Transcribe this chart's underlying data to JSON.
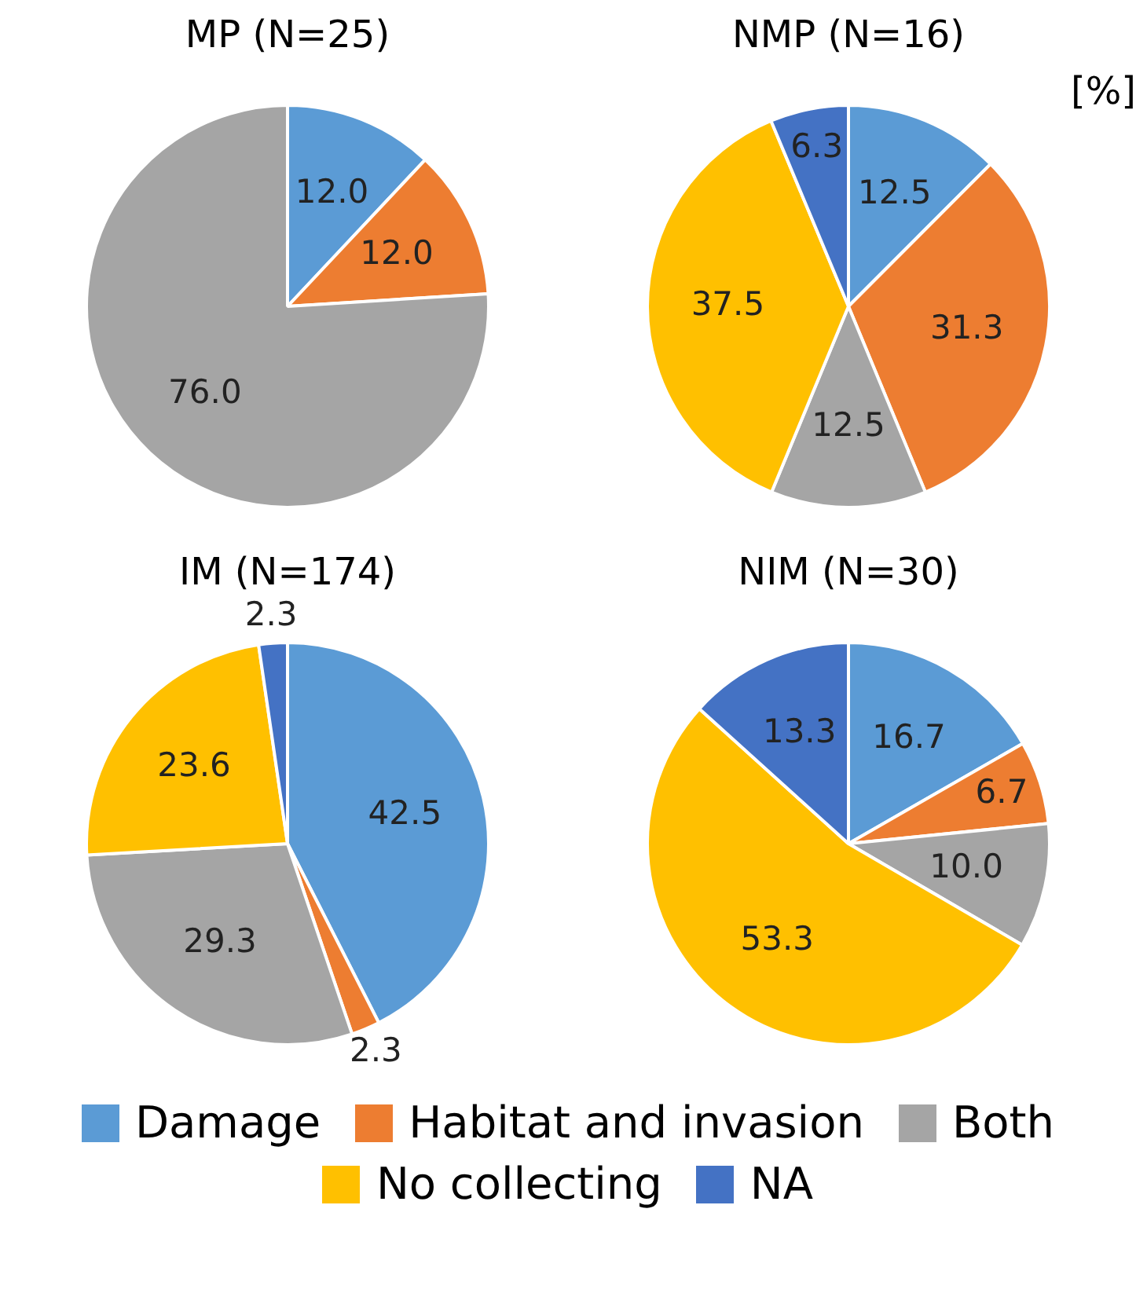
{
  "chart_data": [
    {
      "type": "pie",
      "title": "MP (N=25)",
      "categories": [
        null,
        null,
        null
      ],
      "values": [
        12.0,
        12.0,
        76.0
      ],
      "colors": [
        "#5b9bd5",
        "#ed7d31",
        "#a5a5a5"
      ],
      "value_labels": [
        "12.0",
        "12.0",
        "76.0"
      ]
    },
    {
      "type": "pie",
      "title": "NMP (N=16)",
      "categories": [
        null,
        null,
        null,
        null,
        null
      ],
      "values": [
        12.5,
        31.3,
        12.5,
        37.5,
        6.3
      ],
      "colors": [
        "#5b9bd5",
        "#ed7d31",
        "#a5a5a5",
        "#ffc000",
        "#4472c4"
      ],
      "value_labels": [
        "12.5",
        "31.3",
        "12.5",
        "37.5",
        "6.3"
      ],
      "annotations": [
        "[%]"
      ]
    },
    {
      "type": "pie",
      "title": "IM (N=174)",
      "categories": [
        null,
        null,
        null,
        null,
        null
      ],
      "values": [
        42.5,
        2.3,
        29.3,
        23.6,
        2.3
      ],
      "colors": [
        "#5b9bd5",
        "#ed7d31",
        "#a5a5a5",
        "#ffc000",
        "#4472c4"
      ],
      "value_labels": [
        "42.5",
        "2.3",
        "29.3",
        "23.6",
        "2.3"
      ]
    },
    {
      "type": "pie",
      "title": "NIM (N=30)",
      "categories": [
        "Damage",
        "Habitat and invasion",
        "Both",
        "No collecting",
        "NA"
      ],
      "values": [
        16.7,
        6.7,
        10.0,
        53.3,
        13.3
      ],
      "colors": [
        "#5b9bd5",
        "#ed7d31",
        "#a5a5a5",
        "#ffc000",
        "#4472c4"
      ],
      "value_labels": [
        "16.7",
        "6.7",
        "10.0",
        "53.3",
        "13.3"
      ],
      "legend": "bottom"
    }
  ]
}
